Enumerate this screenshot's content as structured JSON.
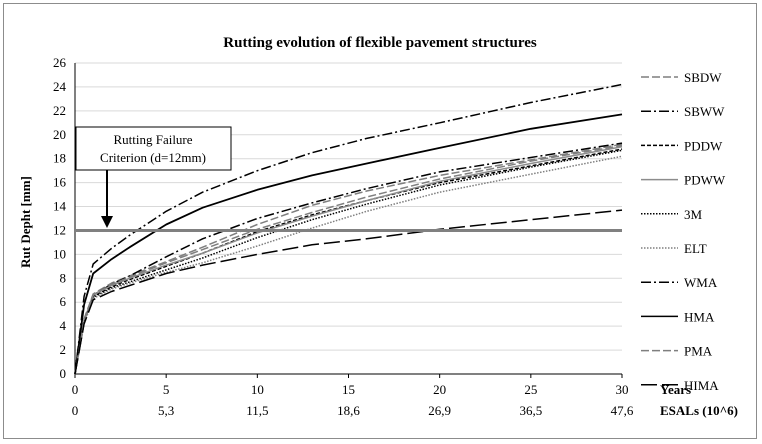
{
  "chart_data": {
    "type": "line",
    "title": "Rutting evolution of flexible pavement structures",
    "ylabel": "Rut Depht [mm]",
    "xlabel_years": "Years",
    "xlabel_esals": "ESALs (10^6)",
    "ylim": [
      0,
      26
    ],
    "xlim": [
      0,
      30
    ],
    "yticks": [
      "0",
      "2",
      "4",
      "6",
      "8",
      "10",
      "12",
      "14",
      "16",
      "18",
      "20",
      "22",
      "24",
      "26"
    ],
    "xticks_years": [
      "0",
      "5",
      "10",
      "15",
      "20",
      "25",
      "30"
    ],
    "xticks_esals": [
      "0",
      "5,3",
      "11,5",
      "18,6",
      "26,9",
      "36,5",
      "47,6"
    ],
    "grid": "horizontal",
    "legend_position": "right",
    "annotation": {
      "text_line1": "Rutting Failure",
      "text_line2": "Criterion (d=12mm)",
      "threshold": 12
    },
    "series": [
      {
        "name": "SBDW",
        "color": "#7f7f7f",
        "dash": "8,3",
        "x": [
          0,
          0.5,
          1,
          2,
          3,
          5,
          7,
          10,
          13,
          16,
          20,
          25,
          30
        ],
        "y": [
          0,
          4.6,
          6.7,
          7.6,
          8.2,
          9.4,
          10.6,
          12.5,
          14.1,
          15.3,
          16.6,
          17.9,
          19.2
        ]
      },
      {
        "name": "SBWW",
        "color": "#000000",
        "dash": "10,3,2,3",
        "x": [
          0,
          0.5,
          1,
          2,
          3,
          5,
          7,
          10,
          13,
          16,
          20,
          25,
          30
        ],
        "y": [
          0,
          4.5,
          6.6,
          7.5,
          8.2,
          9.8,
          11.3,
          13.0,
          14.3,
          15.5,
          16.9,
          18.1,
          19.3
        ]
      },
      {
        "name": "PDDW",
        "color": "#000000",
        "dash": "4,2",
        "x": [
          0,
          0.5,
          1,
          2,
          3,
          5,
          7,
          10,
          13,
          16,
          20,
          25,
          30
        ],
        "y": [
          0,
          4.4,
          6.5,
          7.3,
          7.9,
          9.0,
          10.1,
          11.9,
          13.3,
          14.5,
          16.0,
          17.4,
          18.8
        ]
      },
      {
        "name": "PDWW",
        "color": "#8c8c8c",
        "dash": "",
        "x": [
          0,
          0.5,
          1,
          2,
          3,
          5,
          7,
          10,
          13,
          16,
          20,
          25,
          30
        ],
        "y": [
          0,
          4.5,
          6.6,
          7.4,
          8.0,
          9.1,
          10.1,
          11.8,
          13.2,
          14.5,
          16.1,
          17.6,
          19.0
        ]
      },
      {
        "name": "3M",
        "color": "#000000",
        "dash": "1.5,1.5",
        "x": [
          0,
          0.5,
          1,
          2,
          3,
          5,
          7,
          10,
          13,
          16,
          20,
          25,
          30
        ],
        "y": [
          0,
          4.3,
          6.4,
          7.2,
          7.7,
          8.7,
          9.7,
          11.4,
          12.9,
          14.2,
          15.8,
          17.3,
          18.7
        ]
      },
      {
        "name": "ELT",
        "color": "#7f7f7f",
        "dash": "1.5,1.5",
        "x": [
          0,
          0.5,
          1,
          2,
          3,
          5,
          7,
          10,
          13,
          16,
          20,
          25,
          30
        ],
        "y": [
          0,
          4.2,
          6.3,
          7.1,
          7.6,
          8.5,
          9.3,
          10.7,
          12.2,
          13.6,
          15.2,
          16.7,
          18.2
        ]
      },
      {
        "name": "WMA",
        "color": "#000000",
        "dash": "10,3,2,3",
        "x": [
          0,
          0.5,
          1,
          2,
          3,
          5,
          7,
          10,
          13,
          16,
          20,
          25,
          30
        ],
        "y": [
          0,
          6.5,
          9.2,
          10.5,
          11.6,
          13.6,
          15.2,
          17.0,
          18.5,
          19.7,
          21.0,
          22.7,
          24.2
        ]
      },
      {
        "name": "HMA",
        "color": "#000000",
        "dash": "",
        "x": [
          0,
          0.5,
          1,
          2,
          3,
          5,
          7,
          10,
          13,
          16,
          20,
          25,
          30
        ],
        "y": [
          0,
          5.8,
          8.4,
          9.6,
          10.6,
          12.5,
          13.9,
          15.4,
          16.6,
          17.6,
          18.9,
          20.5,
          21.7
        ]
      },
      {
        "name": "PMA",
        "color": "#7f7f7f",
        "dash": "8,3",
        "x": [
          0,
          0.5,
          1,
          2,
          3,
          5,
          7,
          10,
          13,
          16,
          20,
          25,
          30
        ],
        "y": [
          0,
          4.4,
          6.6,
          7.5,
          8.1,
          9.3,
          10.4,
          12.1,
          13.5,
          14.8,
          16.3,
          17.8,
          19.1
        ]
      },
      {
        "name": "HIMA",
        "color": "#000000",
        "dash": "16,5",
        "x": [
          0,
          0.5,
          1,
          2,
          3,
          5,
          7,
          10,
          13,
          16,
          20,
          25,
          30
        ],
        "y": [
          0,
          4.2,
          6.2,
          6.9,
          7.4,
          8.4,
          9.1,
          10.0,
          10.8,
          11.3,
          12.1,
          12.9,
          13.7
        ]
      }
    ]
  }
}
